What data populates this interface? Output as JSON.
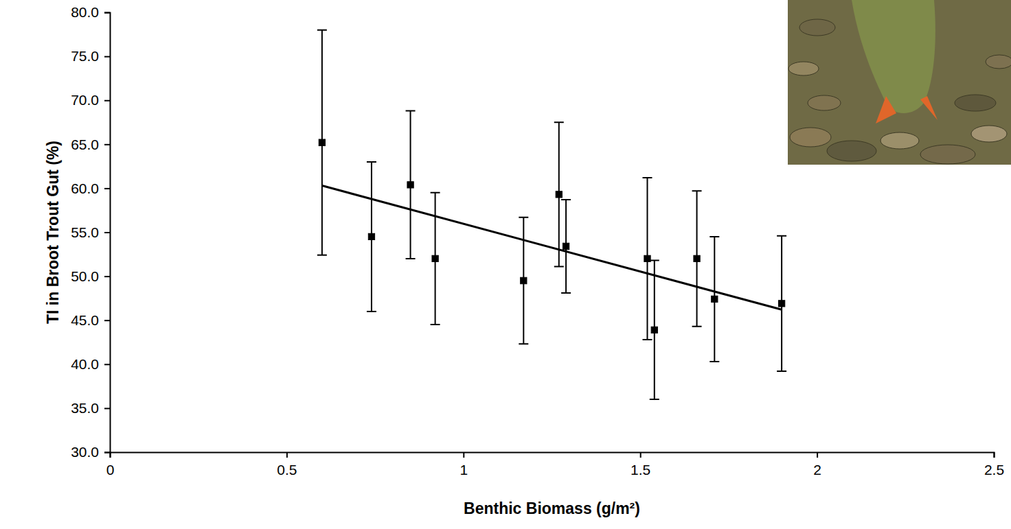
{
  "chart_data": {
    "type": "scatter",
    "x_label": "Benthic Biomass (g/m²)",
    "y_label": "TI in Broot Trout Gut (%)",
    "x": [
      0.6,
      0.74,
      0.85,
      0.92,
      1.17,
      1.27,
      1.29,
      1.52,
      1.54,
      1.66,
      1.71,
      1.9
    ],
    "values": [
      65.2,
      54.5,
      60.4,
      52.0,
      49.5,
      59.3,
      53.4,
      52.0,
      43.9,
      52.0,
      47.4,
      46.9
    ],
    "errors": [
      12.8,
      8.5,
      8.4,
      7.5,
      7.2,
      8.2,
      5.3,
      9.2,
      7.9,
      7.7,
      7.1,
      7.7
    ],
    "trend_line": {
      "x": [
        0.6,
        1.9
      ],
      "values": [
        60.3,
        46.2
      ]
    },
    "color": "#000000",
    "marker": "diamond",
    "grid": false,
    "xlim": [
      0,
      2.5
    ],
    "xticks": [
      0,
      0.5,
      1,
      1.5,
      2,
      2.5
    ],
    "ylim": [
      30,
      80
    ],
    "yticks": [
      {
        "value": 30,
        "label": "30.0"
      },
      {
        "value": 35,
        "label": "35.0"
      },
      {
        "value": 40,
        "label": "40.0"
      },
      {
        "value": 45,
        "label": "45.0"
      },
      {
        "value": 50,
        "label": "50.0"
      },
      {
        "value": 55,
        "label": "55.0"
      },
      {
        "value": 60,
        "label": "60.0"
      },
      {
        "value": 65,
        "label": "65.0"
      },
      {
        "value": 70,
        "label": "70.0"
      },
      {
        "value": 75,
        "label": "75.0"
      },
      {
        "value": 80,
        "label": "80.0"
      }
    ]
  }
}
